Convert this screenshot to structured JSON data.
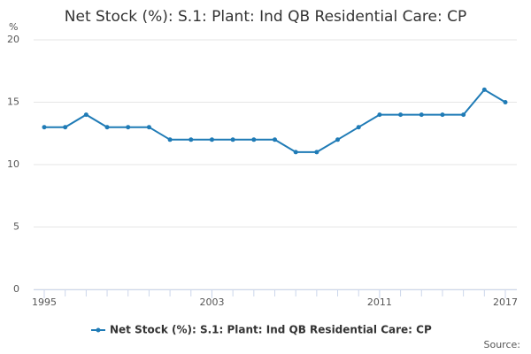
{
  "chart_data": {
    "type": "line",
    "title": "Net Stock (%): S.1: Plant: Ind QB Residential Care: CP",
    "y_label": "%",
    "source": "Source:",
    "x": [
      1995,
      1996,
      1997,
      1998,
      1999,
      2000,
      2001,
      2002,
      2003,
      2004,
      2005,
      2006,
      2007,
      2008,
      2009,
      2010,
      2011,
      2012,
      2013,
      2014,
      2015,
      2016,
      2017
    ],
    "series": [
      {
        "name": "Net Stock (%): S.1: Plant: Ind QB Residential Care: CP",
        "color": "#1f7bb6",
        "values": [
          13,
          13,
          14,
          13,
          13,
          13,
          12,
          12,
          12,
          12,
          12,
          12,
          11,
          11,
          12,
          13,
          14,
          14,
          14,
          14,
          14,
          16,
          15
        ]
      }
    ],
    "xlim": [
      1995,
      2017
    ],
    "xticks": [
      1995,
      2003,
      2011,
      2017
    ],
    "ylim": [
      0,
      20
    ],
    "yticks": [
      0,
      5,
      10,
      15,
      20
    ],
    "grid": true,
    "legend": "bottom"
  }
}
